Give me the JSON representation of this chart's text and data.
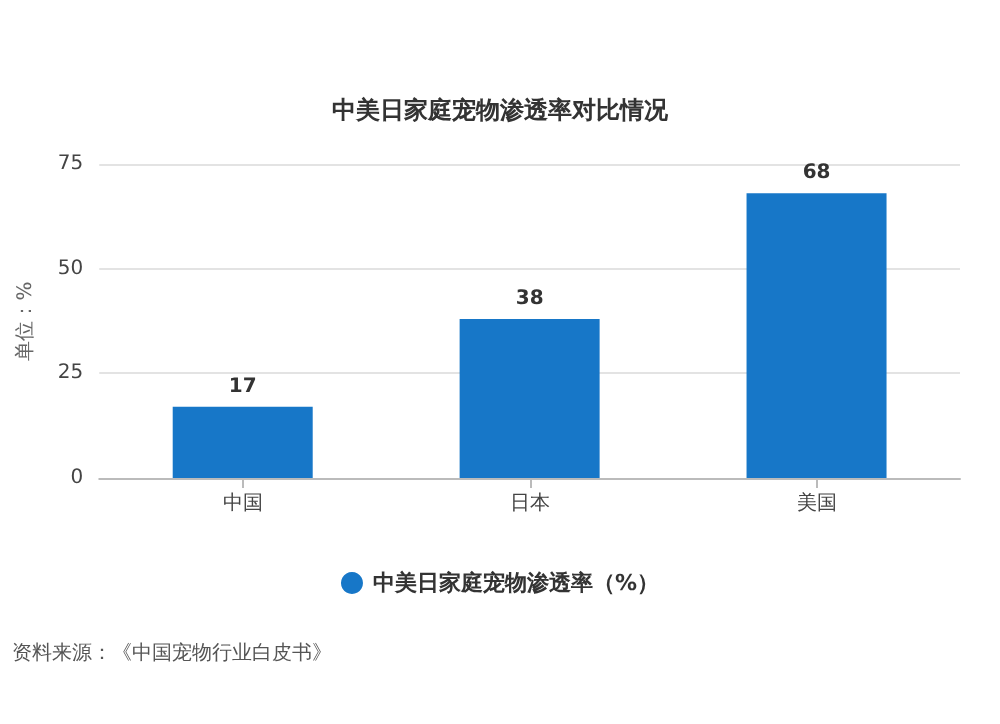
{
  "chart_data": {
    "type": "bar",
    "title": "中美日家庭宠物渗透率对比情况",
    "ylabel": "单位：%",
    "categories": [
      "中国",
      "日本",
      "美国"
    ],
    "series": [
      {
        "name": "中美日家庭宠物渗透率（%）",
        "color": "#1777c8",
        "values": [
          17,
          38,
          68
        ]
      }
    ],
    "ylim": [
      0,
      75
    ],
    "yticks": [
      0,
      25,
      50,
      75
    ],
    "grid": "y",
    "data_labels": true,
    "legend": "bottom",
    "annotations": [
      "资料来源：《中国宠物行业白皮书》"
    ]
  }
}
